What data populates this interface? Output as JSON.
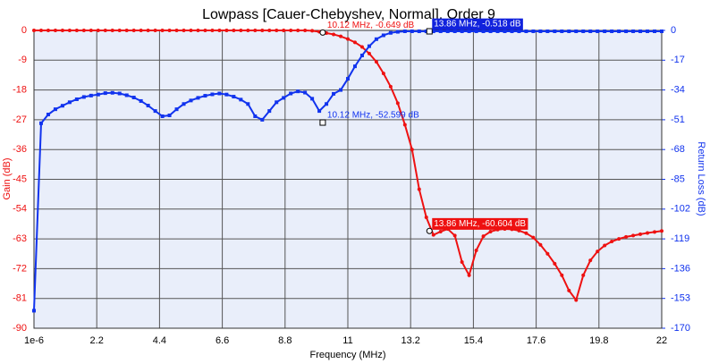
{
  "chart_data": {
    "type": "line",
    "title": "Lowpass [Cauer-Chebyshev, Normal], Order 9",
    "x_label": "Frequency (MHz)",
    "y_label": "Gain (dB)",
    "y2_label": "Return Loss (dB)",
    "grid": true,
    "x": [
      1e-06,
      0.25,
      0.5,
      0.75,
      1,
      1.25,
      1.5,
      1.75,
      2,
      2.25,
      2.5,
      2.75,
      3,
      3.25,
      3.5,
      3.75,
      4,
      4.25,
      4.5,
      4.75,
      5,
      5.25,
      5.5,
      5.75,
      6,
      6.25,
      6.5,
      6.75,
      7,
      7.25,
      7.5,
      7.75,
      8,
      8.25,
      8.5,
      8.75,
      9,
      9.25,
      9.5,
      9.75,
      10,
      10.25,
      10.5,
      10.75,
      11,
      11.25,
      11.5,
      11.75,
      12,
      12.25,
      12.5,
      12.75,
      13,
      13.25,
      13.5,
      13.75,
      14,
      14.25,
      14.5,
      14.75,
      15,
      15.25,
      15.5,
      15.75,
      16,
      16.25,
      16.5,
      16.75,
      17,
      17.25,
      17.5,
      17.75,
      18,
      18.25,
      18.5,
      18.75,
      19,
      19.25,
      19.5,
      19.75,
      20,
      20.25,
      20.5,
      20.75,
      21,
      21.25,
      21.5,
      21.75,
      22
    ],
    "series": [
      {
        "name": "Gain",
        "color": "#ee1111",
        "marker": "circle",
        "axis": "y",
        "values": [
          0,
          0,
          0,
          0,
          0,
          0,
          0,
          0,
          0,
          0,
          0,
          0,
          0,
          0,
          0,
          0,
          0,
          0,
          0,
          0,
          0,
          0,
          0,
          0,
          0,
          0,
          0,
          0,
          0,
          0,
          0,
          0,
          0,
          0,
          0,
          0,
          0,
          0,
          0,
          -0.1,
          -0.4,
          -0.8,
          -1.2,
          -1.8,
          -2.6,
          -3.6,
          -5,
          -7,
          -9.5,
          -13,
          -17,
          -22,
          -28.5,
          -36,
          -48,
          -56.5,
          -61.8,
          -60.8,
          -60,
          -62,
          -70,
          -74,
          -66.5,
          -62.2,
          -60.8,
          -60.2,
          -60,
          -60.1,
          -60.5,
          -61.3,
          -62.6,
          -64.8,
          -67.5,
          -70.5,
          -74,
          -78.6,
          -81.5,
          -74,
          -69.5,
          -66.8,
          -65,
          -63.8,
          -63,
          -62.4,
          -62,
          -61.6,
          -61.2,
          -60.9,
          -60.6
        ]
      },
      {
        "name": "Return Loss",
        "color": "#1133ee",
        "marker": "square",
        "axis": "y2",
        "values": [
          -160,
          -53,
          -48,
          -45,
          -43,
          -41,
          -39.3,
          -38,
          -37.2,
          -36.6,
          -35.8,
          -35.6,
          -36,
          -37,
          -38.3,
          -40.3,
          -42.9,
          -46,
          -49,
          -48.5,
          -45,
          -42,
          -40,
          -38.5,
          -37.3,
          -36.5,
          -36,
          -36.6,
          -37.8,
          -39.5,
          -42,
          -49,
          -51,
          -46,
          -41,
          -38.5,
          -36,
          -34.8,
          -35.5,
          -39,
          -46,
          -42,
          -36.2,
          -34,
          -27.6,
          -20.5,
          -14.3,
          -9,
          -5,
          -2.8,
          -1.4,
          -0.8,
          -0.5,
          -0.5,
          -0.5,
          -0.52,
          -0.52,
          -0.5,
          -0.5,
          -0.5,
          -0.5,
          -0.5,
          -0.5,
          -0.5,
          -0.5,
          -0.5,
          -0.5,
          -0.5,
          -0.5,
          -0.5,
          -0.5,
          -0.5,
          -0.5,
          -0.5,
          -0.5,
          -0.5,
          -0.5,
          -0.5,
          -0.5,
          -0.5,
          -0.5,
          -0.5,
          -0.5,
          -0.5,
          -0.5,
          -0.5,
          -0.5,
          -0.5,
          -0.5
        ]
      }
    ],
    "xlim": [
      1e-06,
      22
    ],
    "xticks": [
      {
        "value": 1e-06,
        "label": "1e-6"
      },
      2.2,
      4.4,
      6.6,
      8.8,
      11,
      13.2,
      15.4,
      17.6,
      19.8,
      22
    ],
    "ylim": [
      -90,
      0
    ],
    "yticks": [
      0,
      -9,
      -18,
      -27,
      -36,
      -45,
      -54,
      -63,
      -72,
      -81,
      -90
    ],
    "y2lim": [
      -170,
      0
    ],
    "y2ticks": [
      0,
      -17,
      -34,
      -51,
      -68,
      -85,
      -102,
      -119,
      -136,
      -153,
      -170
    ],
    "annotations": [
      {
        "label": "10.12 MHz, -0.649 dB",
        "x": 10.12,
        "y": -0.649,
        "axis": "y",
        "color": "#ee1111",
        "boxed": false
      },
      {
        "label": "13.86 MHz, -0.518 dB",
        "x": 13.86,
        "y": -0.518,
        "axis": "y2",
        "color": "#1122dd",
        "boxed": true
      },
      {
        "label": "10.12 MHz, -52.599 dB",
        "x": 10.12,
        "y": -52.599,
        "axis": "y2",
        "color": "#1133ee",
        "boxed": false
      },
      {
        "label": "13.86 MHz, -60.604 dB",
        "x": 13.86,
        "y": -60.604,
        "axis": "y",
        "color": "#ee1111",
        "boxed": true
      }
    ]
  }
}
